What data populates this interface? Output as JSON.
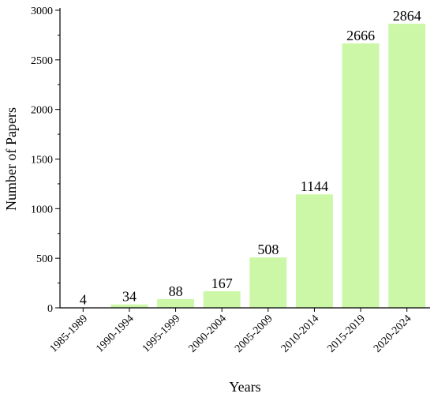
{
  "chart_data": {
    "type": "bar",
    "title": "",
    "xlabel": "Years",
    "ylabel": "Number of  Papers",
    "categories": [
      "1985-1989",
      "1990-1994",
      "1995-1999",
      "2000-2004",
      "2005-2009",
      "2010-2014",
      "2015-2019",
      "2020-2024"
    ],
    "values": [
      4,
      34,
      88,
      167,
      508,
      1144,
      2666,
      2864
    ],
    "value_labels": [
      "4",
      "34",
      "88",
      "167",
      "508",
      "1144",
      "2666",
      "2864"
    ],
    "ylim": [
      0,
      3000
    ],
    "yticks": [
      0,
      500,
      1000,
      1500,
      2000,
      2500,
      3000
    ],
    "ytick_labels": [
      "0",
      "500",
      "1000",
      "1500",
      "2000",
      "2500",
      "3000"
    ],
    "grid": false,
    "legend": "none",
    "bar_color": "#ccf7a6",
    "axis_color": "#000000"
  }
}
